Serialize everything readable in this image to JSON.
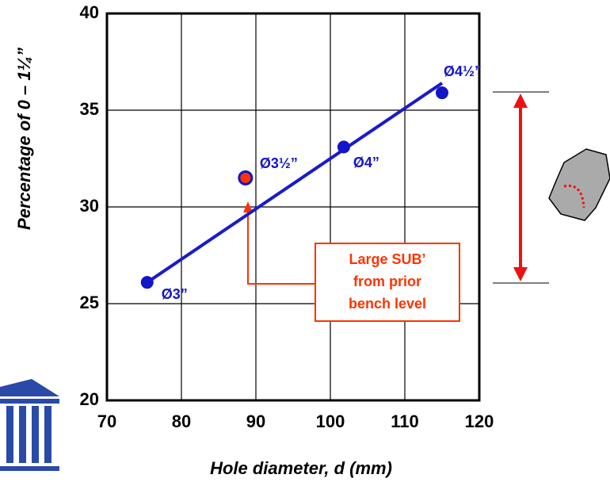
{
  "chart_data": {
    "type": "scatter",
    "x_label": "Hole diameter, d (mm)",
    "y_label": "Percentage of  0 – 1¼”",
    "xlim": [
      70,
      120
    ],
    "xticks": [
      70,
      80,
      90,
      100,
      110,
      120
    ],
    "ylim": [
      20,
      40
    ],
    "yticks": [
      20,
      25,
      30,
      35,
      40
    ],
    "grid": true,
    "points": {
      "color": "#1414c8",
      "highlight_color": "#ff3300",
      "x": [
        75.4,
        88.6,
        101.8,
        115.0
      ],
      "values": [
        26.1,
        31.5,
        33.1,
        35.9
      ],
      "labels": [
        "Ø3”",
        "Ø3½”",
        "Ø4”",
        "Ø4½”"
      ],
      "highlight": [
        false,
        true,
        false,
        false
      ]
    },
    "trend": {
      "color": "#1a1acc",
      "x": [
        75.4,
        115.0
      ],
      "values": [
        26.1,
        36.4
      ]
    },
    "annotation": [
      "Large SUB’",
      "from prior",
      "bench level"
    ]
  }
}
